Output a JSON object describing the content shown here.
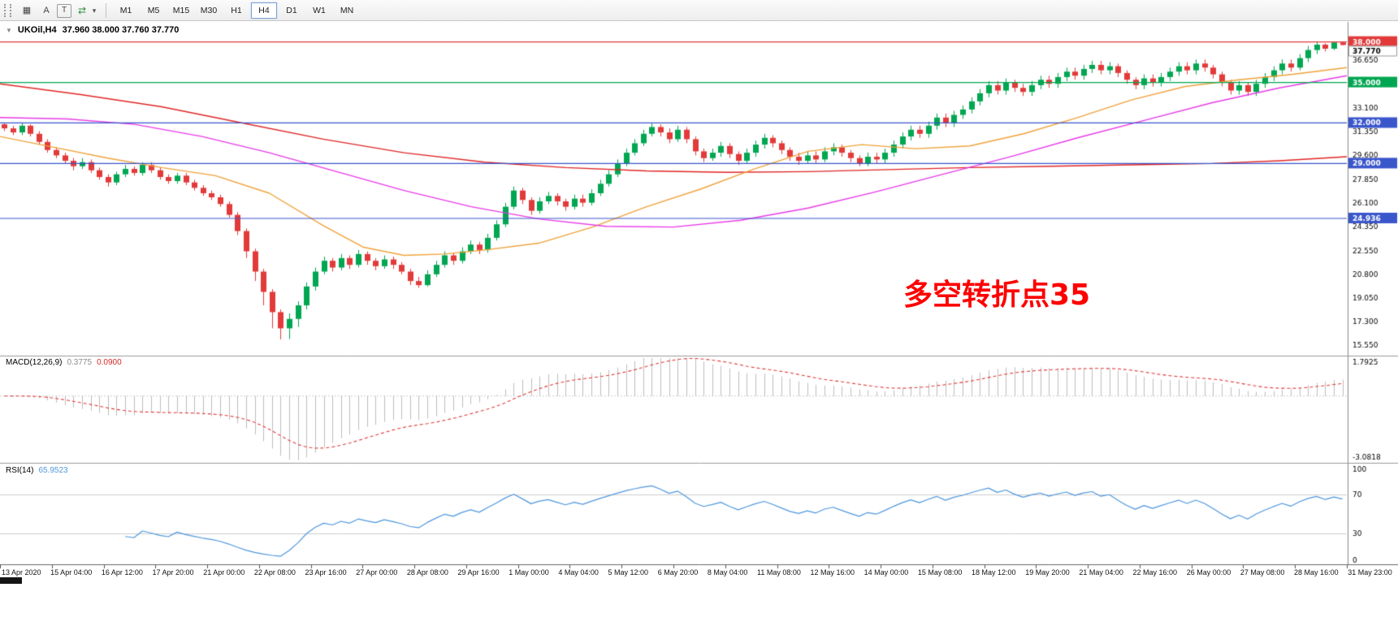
{
  "toolbar": {
    "tools": [
      {
        "name": "chart-window-icon",
        "glyph": "▦"
      },
      {
        "name": "annotation-letter-button",
        "glyph": "A"
      },
      {
        "name": "text-tool-button",
        "glyph": "T"
      },
      {
        "name": "auto-trading-icon",
        "glyph": "⇄"
      },
      {
        "name": "dropdown-caret-icon",
        "glyph": "▾"
      }
    ],
    "timeframes": [
      "M1",
      "M5",
      "M15",
      "M30",
      "H1",
      "H4",
      "D1",
      "W1",
      "MN"
    ],
    "active_timeframe": "H4"
  },
  "chart": {
    "one_click_arrow": "▼"
  },
  "chart_data": [
    {
      "type": "candlestick",
      "title": "UKOil,H4",
      "ohlc_display": "37.960 38.000 37.760 37.770",
      "candle_up_color": "#00a651",
      "candle_down_color": "#e23a3a",
      "ylim": [
        14.9,
        39.3
      ],
      "y_tick_labels": [
        "36.650",
        "33.100",
        "31.350",
        "29.600",
        "27.850",
        "26.100",
        "24.350",
        "22.550",
        "20.800",
        "19.050",
        "17.300",
        "15.550"
      ],
      "current_price_label": "37.770",
      "hlines": [
        {
          "label": "38.000",
          "color": "#e23a3a"
        },
        {
          "label": "35.000",
          "color": "#00a651"
        },
        {
          "label": "32.000",
          "color": "#3a56cb"
        },
        {
          "label": "29.000",
          "color": "#3a56cb"
        },
        {
          "label": "24.936",
          "color": "#3a56cb"
        }
      ],
      "annotation": {
        "text": "多空转折点35",
        "color": "#FF0000"
      },
      "x_labels": [
        "13 Apr 2020",
        "15 Apr 04:00",
        "16 Apr 12:00",
        "17 Apr 20:00",
        "21 Apr 00:00",
        "22 Apr 08:00",
        "23 Apr 16:00",
        "27 Apr 00:00",
        "28 Apr 08:00",
        "29 Apr 16:00",
        "1 May 00:00",
        "4 May 04:00",
        "5 May 12:00",
        "6 May 20:00",
        "8 May 04:00",
        "11 May 08:00",
        "12 May 16:00",
        "14 May 00:00",
        "15 May 08:00",
        "18 May 12:00",
        "19 May 20:00",
        "21 May 04:00",
        "22 May 16:00",
        "26 May 00:00",
        "27 May 08:00",
        "28 May 16:00",
        "31 May 23:00"
      ],
      "first_open": 31.9,
      "closes": [
        31.6,
        31.3,
        31.8,
        31.2,
        30.6,
        30.0,
        29.6,
        29.2,
        28.8,
        29.1,
        28.5,
        28.0,
        27.6,
        28.2,
        28.6,
        28.3,
        28.9,
        28.5,
        28.0,
        27.7,
        28.1,
        27.6,
        27.2,
        26.8,
        26.5,
        26.0,
        25.2,
        24.0,
        22.5,
        21.0,
        19.5,
        18.0,
        16.8,
        17.5,
        18.5,
        19.9,
        21.0,
        21.8,
        21.3,
        22.0,
        21.5,
        22.3,
        21.8,
        21.4,
        21.9,
        21.5,
        21.0,
        20.3,
        20.0,
        20.8,
        21.5,
        22.2,
        21.8,
        22.5,
        23.0,
        22.6,
        23.5,
        24.5,
        25.8,
        27.0,
        26.3,
        25.5,
        26.2,
        26.6,
        26.2,
        25.8,
        26.4,
        26.1,
        26.8,
        27.5,
        28.2,
        29.0,
        29.8,
        30.5,
        31.2,
        31.7,
        31.3,
        30.8,
        31.5,
        30.8,
        29.9,
        29.4,
        29.8,
        30.3,
        29.7,
        29.2,
        29.8,
        30.4,
        30.9,
        30.5,
        30.0,
        29.5,
        29.2,
        29.6,
        29.3,
        29.9,
        30.2,
        29.8,
        29.4,
        29.0,
        29.5,
        29.3,
        29.8,
        30.4,
        31.0,
        31.5,
        31.2,
        31.8,
        32.4,
        32.0,
        32.6,
        33.0,
        33.6,
        34.2,
        34.8,
        34.4,
        35.0,
        34.6,
        34.3,
        34.8,
        35.2,
        34.9,
        35.4,
        35.8,
        35.5,
        36.0,
        36.3,
        35.9,
        36.2,
        35.7,
        35.2,
        34.8,
        35.3,
        35.0,
        35.4,
        35.8,
        36.2,
        35.9,
        36.4,
        36.1,
        35.6,
        35.0,
        34.4,
        34.8,
        34.3,
        34.9,
        35.4,
        35.9,
        36.4,
        36.1,
        36.8,
        37.4,
        37.8,
        37.5,
        37.96,
        37.77
      ],
      "highs": [
        32.0,
        31.8,
        32.0,
        31.9,
        31.4,
        30.8,
        30.2,
        29.8,
        29.4,
        29.4,
        29.3,
        28.7,
        28.2,
        28.4,
        28.9,
        28.8,
        29.1,
        29.1,
        28.7,
        28.2,
        28.3,
        28.3,
        27.8,
        27.4,
        27.0,
        26.7,
        26.2,
        25.4,
        24.2,
        22.7,
        21.2,
        19.7,
        18.2,
        17.9,
        18.8,
        20.2,
        21.3,
        22.1,
        22.0,
        22.3,
        22.2,
        22.6,
        22.5,
        22.0,
        22.2,
        22.1,
        21.7,
        21.2,
        20.6,
        21.1,
        21.8,
        22.5,
        22.4,
        22.8,
        23.3,
        23.2,
        23.8,
        24.8,
        26.1,
        27.3,
        27.2,
        26.5,
        26.5,
        26.9,
        26.8,
        26.4,
        26.7,
        26.7,
        27.1,
        27.8,
        28.5,
        29.3,
        30.1,
        30.8,
        31.5,
        32.0,
        31.9,
        31.6,
        31.8,
        31.7,
        31.0,
        30.1,
        30.1,
        30.6,
        30.5,
        29.9,
        30.1,
        30.7,
        31.2,
        31.1,
        30.7,
        30.2,
        29.8,
        29.9,
        29.9,
        30.2,
        30.5,
        30.4,
        30.0,
        29.6,
        29.8,
        29.8,
        30.1,
        30.7,
        31.3,
        31.8,
        31.8,
        32.1,
        32.7,
        32.7,
        32.9,
        33.3,
        33.9,
        34.5,
        35.1,
        35.1,
        35.3,
        35.2,
        34.9,
        35.1,
        35.5,
        35.5,
        35.7,
        36.1,
        36.1,
        36.3,
        36.6,
        36.6,
        36.5,
        36.4,
        35.9,
        35.4,
        35.6,
        35.6,
        35.7,
        36.1,
        36.5,
        36.5,
        36.7,
        36.7,
        36.3,
        35.8,
        35.2,
        35.1,
        35.0,
        35.2,
        35.7,
        36.2,
        36.7,
        36.7,
        37.1,
        37.7,
        38.0,
        37.9,
        38.0,
        38.0
      ],
      "lows": [
        31.4,
        31.1,
        31.1,
        31.0,
        30.4,
        29.8,
        29.4,
        29.0,
        28.5,
        28.6,
        28.3,
        27.8,
        27.3,
        27.4,
        28.0,
        28.1,
        28.1,
        28.3,
        27.8,
        27.5,
        27.5,
        27.4,
        27.0,
        26.6,
        26.3,
        25.8,
        25.0,
        23.7,
        22.0,
        20.3,
        18.5,
        16.8,
        15.98,
        16.0,
        16.9,
        18.2,
        19.6,
        20.8,
        21.0,
        21.1,
        21.2,
        21.3,
        21.5,
        21.1,
        21.2,
        21.2,
        20.8,
        20.0,
        19.8,
        19.9,
        20.6,
        21.3,
        21.5,
        21.6,
        22.3,
        22.3,
        22.4,
        23.3,
        24.3,
        25.6,
        26.0,
        25.2,
        25.3,
        26.0,
        25.9,
        25.5,
        25.6,
        25.8,
        25.9,
        26.6,
        27.3,
        28.0,
        28.8,
        29.6,
        30.3,
        31.0,
        31.0,
        30.5,
        30.6,
        30.5,
        29.6,
        29.1,
        29.2,
        29.5,
        29.4,
        28.9,
        29.0,
        29.5,
        30.1,
        30.2,
        29.7,
        29.2,
        28.9,
        29.0,
        29.0,
        29.1,
        29.6,
        29.5,
        29.1,
        28.8,
        28.8,
        29.0,
        29.0,
        29.5,
        30.1,
        30.7,
        30.9,
        30.9,
        31.5,
        31.7,
        31.7,
        32.3,
        32.7,
        33.3,
        33.9,
        34.1,
        34.1,
        34.3,
        34.0,
        34.0,
        34.5,
        34.6,
        34.6,
        35.1,
        35.2,
        35.2,
        35.7,
        35.6,
        35.6,
        35.4,
        34.9,
        34.5,
        34.5,
        34.7,
        34.7,
        35.1,
        35.5,
        35.6,
        35.6,
        35.8,
        35.3,
        34.7,
        34.1,
        34.1,
        34.0,
        34.0,
        34.6,
        35.1,
        35.6,
        35.8,
        35.9,
        36.5,
        37.1,
        37.3,
        37.4,
        37.76
      ],
      "moving_averages": [
        {
          "name": "slow-ma",
          "color": "#e02525",
          "points": [
            [
              0,
              34.9
            ],
            [
              6,
              34.1
            ],
            [
              12,
              33.2
            ],
            [
              18,
              32.0
            ],
            [
              24,
              30.8
            ],
            [
              30,
              29.8
            ],
            [
              36,
              29.1
            ],
            [
              42,
              28.7
            ],
            [
              48,
              28.45
            ],
            [
              54,
              28.35
            ],
            [
              60,
              28.4
            ],
            [
              66,
              28.55
            ],
            [
              72,
              28.7
            ],
            [
              78,
              28.8
            ],
            [
              84,
              28.9
            ],
            [
              90,
              29.0
            ],
            [
              95,
              29.2
            ],
            [
              100,
              29.5
            ]
          ]
        },
        {
          "name": "fast-ma",
          "color": "#efa23a",
          "points": [
            [
              0,
              31.0
            ],
            [
              4,
              30.2
            ],
            [
              8,
              29.4
            ],
            [
              12,
              28.7
            ],
            [
              16,
              28.1
            ],
            [
              20,
              26.8
            ],
            [
              24,
              24.4
            ],
            [
              27,
              22.8
            ],
            [
              30,
              22.2
            ],
            [
              33,
              22.3
            ],
            [
              36,
              22.6
            ],
            [
              40,
              23.1
            ],
            [
              44,
              24.3
            ],
            [
              48,
              25.8
            ],
            [
              52,
              27.1
            ],
            [
              56,
              28.6
            ],
            [
              60,
              29.9
            ],
            [
              64,
              30.4
            ],
            [
              68,
              30.1
            ],
            [
              72,
              30.3
            ],
            [
              76,
              31.2
            ],
            [
              80,
              32.4
            ],
            [
              84,
              33.7
            ],
            [
              88,
              34.7
            ],
            [
              92,
              35.2
            ],
            [
              96,
              35.6
            ],
            [
              100,
              36.1
            ]
          ]
        },
        {
          "name": "mid-ma",
          "color": "#e83ae8",
          "points": [
            [
              0,
              32.4
            ],
            [
              5,
              32.3
            ],
            [
              10,
              31.9
            ],
            [
              15,
              31.0
            ],
            [
              20,
              29.8
            ],
            [
              25,
              28.4
            ],
            [
              30,
              27.0
            ],
            [
              35,
              25.8
            ],
            [
              40,
              24.9
            ],
            [
              45,
              24.35
            ],
            [
              50,
              24.3
            ],
            [
              55,
              24.8
            ],
            [
              60,
              25.7
            ],
            [
              65,
              26.9
            ],
            [
              70,
              28.2
            ],
            [
              75,
              29.5
            ],
            [
              80,
              30.9
            ],
            [
              85,
              32.2
            ],
            [
              90,
              33.5
            ],
            [
              95,
              34.6
            ],
            [
              100,
              35.5
            ]
          ]
        }
      ]
    },
    {
      "type": "bar",
      "name": "MACD",
      "label": "MACD(12,26,9)",
      "value": "0.3775",
      "signal_value": "0.0900",
      "fast": 12,
      "slow": 26,
      "signal": 9,
      "axis_top_label": "1.7925",
      "axis_bottom_label": "-3.0818",
      "histogram_color": "#bdbdbd",
      "signal_color": "#e23a3a"
    },
    {
      "type": "line",
      "name": "RSI",
      "label": "RSI(14)",
      "value": "65.9523",
      "period": 14,
      "range": [
        0,
        100
      ],
      "levels": [
        70,
        30
      ],
      "axis_labels": [
        "100",
        "70",
        "30",
        "0"
      ],
      "line_color": "#4f97dd"
    }
  ]
}
